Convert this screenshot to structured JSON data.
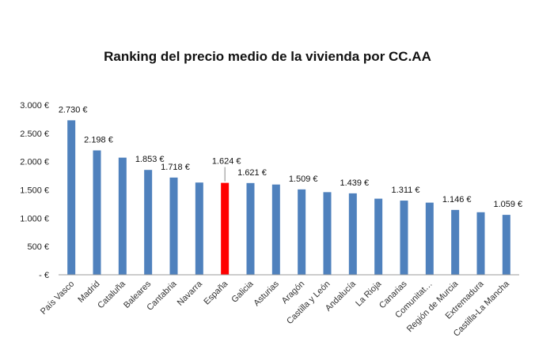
{
  "chart_data": {
    "type": "bar",
    "title": "Ranking del precio medio de la vivienda por CC.AA",
    "xlabel": "",
    "ylabel": "",
    "ylim": [
      0,
      3000
    ],
    "y_ticks": [
      0,
      500,
      1000,
      1500,
      2000,
      2500,
      3000
    ],
    "y_tick_labels": [
      "-  €",
      "500 €",
      "1.000 €",
      "1.500 €",
      "2.000 €",
      "2.500 €",
      "3.000 €"
    ],
    "grid": false,
    "legend": "none",
    "categories": [
      "País Vasco",
      "Madrid",
      "Cataluña",
      "Baleares",
      "Cantabria",
      "Navarra",
      "España",
      "Galicia",
      "Asturias",
      "Aragón",
      "Castilla y León",
      "Andalucía",
      "La Rioja",
      "Canarias",
      "Comunitat…",
      "Región de Murcia",
      "Extremadura",
      "Castilla-La Mancha"
    ],
    "values": [
      2730,
      2198,
      2070,
      1853,
      1718,
      1630,
      1624,
      1621,
      1595,
      1509,
      1460,
      1439,
      1345,
      1311,
      1275,
      1146,
      1105,
      1059
    ],
    "data_labels": [
      "2.730 €",
      "2.198 €",
      "",
      "1.853 €",
      "1.718 €",
      "",
      "1.624 €",
      "1.621 €",
      "",
      "1.509 €",
      "",
      "1.439 €",
      "",
      "1.311 €",
      "",
      "1.146 €",
      "",
      "1.059 €"
    ],
    "highlight_index": 6,
    "colors": {
      "bar": "#4f81bd",
      "highlight": "#ff0000",
      "axis": "#999999"
    }
  }
}
